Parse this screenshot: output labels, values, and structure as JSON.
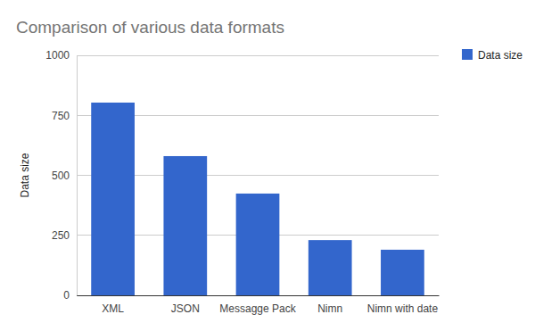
{
  "chart_data": {
    "type": "bar",
    "title": "Comparison of various data formats",
    "y_label": "Data size",
    "categories": [
      "XML",
      "JSON",
      "Messagge Pack",
      "Nimn",
      "Nimn with date"
    ],
    "series": [
      {
        "name": "Data size",
        "color": "#3366cc",
        "values": [
          803,
          580,
          424,
          230,
          190
        ]
      }
    ],
    "ylim": [
      0,
      1000
    ],
    "yticks": [
      0,
      250,
      500,
      750,
      1000
    ],
    "grid": true,
    "legend": "right"
  }
}
